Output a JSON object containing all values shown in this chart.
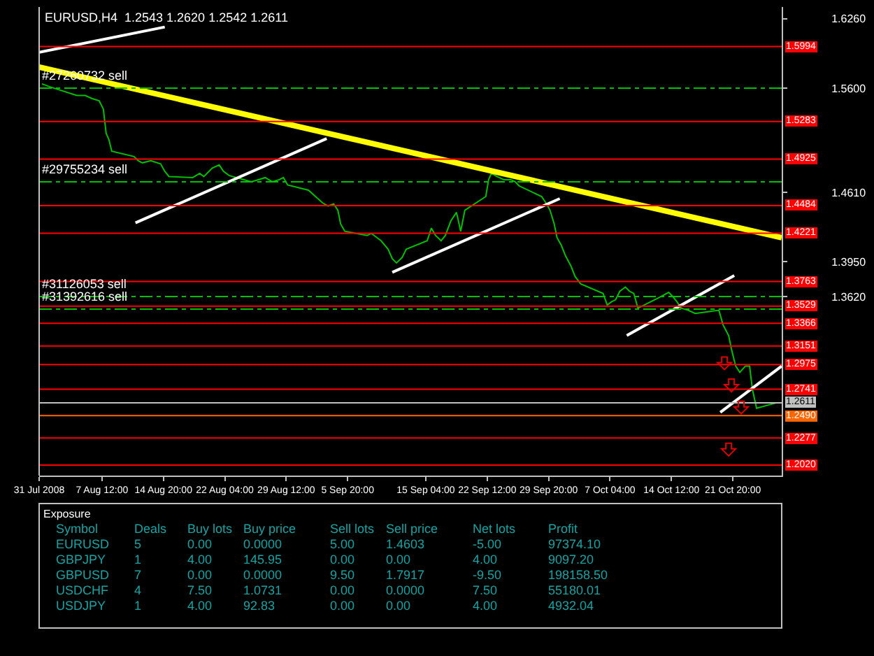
{
  "chart_data": {
    "type": "line",
    "title": "EURUSD,H4  1.2543 1.2620 1.2542 1.2611",
    "xlim": [
      "2008-07-31T00:00",
      "2008-10-27T16:00"
    ],
    "ylim": [
      1.192,
      1.637
    ],
    "xticks": [
      {
        "value": "2008-07-31T00:00",
        "label": "31 Jul 2008"
      },
      {
        "value": "2008-08-07T12:00",
        "label": "7 Aug 12:00"
      },
      {
        "value": "2008-08-14T20:00",
        "label": "14 Aug 20:00"
      },
      {
        "value": "2008-08-22T04:00",
        "label": "22 Aug 04:00"
      },
      {
        "value": "2008-08-29T12:00",
        "label": "29 Aug 12:00"
      },
      {
        "value": "2008-09-05T20:00",
        "label": "5 Sep 20:00"
      },
      {
        "value": "2008-09-15T04:00",
        "label": "15 Sep 04:00"
      },
      {
        "value": "2008-09-22T12:00",
        "label": "22 Sep 12:00"
      },
      {
        "value": "2008-09-29T20:00",
        "label": "29 Sep 20:00"
      },
      {
        "value": "2008-10-07T04:00",
        "label": "7 Oct 04:00"
      },
      {
        "value": "2008-10-14T12:00",
        "label": "14 Oct 12:00"
      },
      {
        "value": "2008-10-21T20:00",
        "label": "21 Oct 20:00"
      }
    ],
    "yticks": [
      {
        "value": 1.626,
        "label": "1.6260"
      },
      {
        "value": 1.56,
        "label": "1.5600"
      },
      {
        "value": 1.461,
        "label": "1.4610"
      },
      {
        "value": 1.395,
        "label": "1.3950"
      },
      {
        "value": 1.362,
        "label": "1.3620"
      }
    ],
    "series": [
      {
        "color": "#00c000",
        "x": [
          "2008-07-31T08:00",
          "2008-08-01T08:00",
          "2008-08-04T12:00",
          "2008-08-05T12:00",
          "2008-08-06T08:00",
          "2008-08-07T04:00",
          "2008-08-07T16:00",
          "2008-08-08T00:00",
          "2008-08-08T08:00",
          "2008-08-08T16:00",
          "2008-08-11T08:00",
          "2008-08-11T20:00",
          "2008-08-12T08:00",
          "2008-08-13T08:00",
          "2008-08-14T12:00",
          "2008-08-15T00:00",
          "2008-08-15T12:00",
          "2008-08-18T08:00",
          "2008-08-19T04:00",
          "2008-08-19T16:00",
          "2008-08-20T16:00",
          "2008-08-21T12:00",
          "2008-08-22T00:00",
          "2008-08-22T16:00",
          "2008-08-25T08:00",
          "2008-08-26T04:00",
          "2008-08-27T00:00",
          "2008-08-27T20:00",
          "2008-08-28T16:00",
          "2008-08-29T04:00",
          "2008-08-29T16:00",
          "2008-09-01T04:00",
          "2008-09-02T00:00",
          "2008-09-02T20:00",
          "2008-09-03T12:00",
          "2008-09-04T04:00",
          "2008-09-04T16:00",
          "2008-09-05T00:00",
          "2008-09-05T12:00",
          "2008-09-08T04:00",
          "2008-09-08T16:00",
          "2008-09-09T08:00",
          "2008-09-09T20:00",
          "2008-09-10T16:00",
          "2008-09-11T04:00",
          "2008-09-11T16:00",
          "2008-09-12T08:00",
          "2008-09-12T20:00",
          "2008-09-15T08:00",
          "2008-09-15T20:00",
          "2008-09-16T08:00",
          "2008-09-17T00:00",
          "2008-09-17T12:00",
          "2008-09-18T04:00",
          "2008-09-18T20:00",
          "2008-09-19T08:00",
          "2008-09-19T20:00",
          "2008-09-22T08:00",
          "2008-09-22T16:00",
          "2008-09-23T00:00",
          "2008-09-23T16:00",
          "2008-09-24T12:00",
          "2008-09-25T08:00",
          "2008-09-25T20:00",
          "2008-09-26T08:00",
          "2008-09-29T00:00",
          "2008-09-29T12:00",
          "2008-09-30T00:00",
          "2008-09-30T12:00",
          "2008-09-30T20:00",
          "2008-10-01T08:00",
          "2008-10-01T20:00",
          "2008-10-02T12:00",
          "2008-10-03T00:00",
          "2008-10-03T16:00",
          "2008-10-06T08:00",
          "2008-10-06T20:00",
          "2008-10-07T08:00",
          "2008-10-07T20:00",
          "2008-10-08T08:00",
          "2008-10-09T00:00",
          "2008-10-09T12:00",
          "2008-10-10T00:00",
          "2008-10-10T12:00",
          "2008-10-13T00:00",
          "2008-10-14T04:00",
          "2008-10-14T16:00",
          "2008-10-15T04:00",
          "2008-10-15T16:00",
          "2008-10-16T12:00",
          "2008-10-17T08:00",
          "2008-10-20T04:00",
          "2008-10-20T16:00",
          "2008-10-21T08:00",
          "2008-10-21T16:00",
          "2008-10-22T04:00",
          "2008-10-22T16:00",
          "2008-10-23T08:00",
          "2008-10-23T20:00",
          "2008-10-24T04:00",
          "2008-10-24T16:00",
          "2008-10-27T00:00"
        ],
        "values": [
          1.564,
          1.561,
          1.553,
          1.553,
          1.55,
          1.548,
          1.54,
          1.517,
          1.511,
          1.5,
          1.495,
          1.491,
          1.489,
          1.491,
          1.488,
          1.481,
          1.476,
          1.475,
          1.479,
          1.476,
          1.484,
          1.487,
          1.481,
          1.477,
          1.471,
          1.473,
          1.475,
          1.471,
          1.473,
          1.475,
          1.468,
          1.463,
          1.457,
          1.451,
          1.448,
          1.45,
          1.444,
          1.431,
          1.424,
          1.42,
          1.422,
          1.418,
          1.415,
          1.407,
          1.398,
          1.394,
          1.399,
          1.407,
          1.415,
          1.427,
          1.42,
          1.415,
          1.42,
          1.434,
          1.442,
          1.424,
          1.444,
          1.457,
          1.473,
          1.479,
          1.476,
          1.473,
          1.473,
          1.471,
          1.467,
          1.457,
          1.451,
          1.444,
          1.431,
          1.418,
          1.411,
          1.401,
          1.391,
          1.381,
          1.374,
          1.365,
          1.354,
          1.357,
          1.359,
          1.367,
          1.371,
          1.367,
          1.365,
          1.351,
          1.361,
          1.366,
          1.362,
          1.357,
          1.351,
          1.349,
          1.346,
          1.349,
          1.335,
          1.325,
          1.312,
          1.296,
          1.29,
          1.296,
          1.296,
          1.274,
          1.256,
          1.261
        ]
      },
      {
        "type": "line",
        "color": "#ffff00",
        "x": [
          "2008-07-31T00:00",
          "2008-10-27T16:00"
        ],
        "values": [
          1.58,
          1.418
        ]
      },
      {
        "type": "line",
        "color": "#ffffff",
        "x": [
          "2008-07-31T00:00",
          "2008-08-15T00:00"
        ],
        "values": [
          1.594,
          1.618
        ]
      },
      {
        "type": "line",
        "color": "#ffffff",
        "x": [
          "2008-08-11T12:00",
          "2008-09-03T08:00"
        ],
        "values": [
          1.432,
          1.512
        ]
      },
      {
        "type": "line",
        "color": "#ffffff",
        "x": [
          "2008-09-11T04:00",
          "2008-10-01T04:00"
        ],
        "values": [
          1.385,
          1.455
        ]
      },
      {
        "type": "line",
        "color": "#ffffff",
        "x": [
          "2008-10-09T04:00",
          "2008-10-22T00:00"
        ],
        "values": [
          1.325,
          1.382
        ]
      },
      {
        "type": "line",
        "color": "#ffffff",
        "x": [
          "2008-10-20T08:00",
          "2008-10-27T16:00"
        ],
        "values": [
          1.252,
          1.296
        ]
      }
    ],
    "ref_lines": [
      {
        "axis": "y",
        "value": 1.5994,
        "label": "1.5994",
        "color": "#ff0000"
      },
      {
        "axis": "y",
        "value": 1.5283,
        "label": "1.5283",
        "color": "#ff0000"
      },
      {
        "axis": "y",
        "value": 1.4925,
        "label": "1.4925",
        "color": "#ff0000"
      },
      {
        "axis": "y",
        "value": 1.4484,
        "label": "1.4484",
        "color": "#ff0000"
      },
      {
        "axis": "y",
        "value": 1.4221,
        "label": "1.4221",
        "color": "#ff0000"
      },
      {
        "axis": "y",
        "value": 1.3763,
        "label": "1.3763",
        "color": "#ff0000"
      },
      {
        "axis": "y",
        "value": 1.3529,
        "label": "1.3529",
        "color": "#ff0000"
      },
      {
        "axis": "y",
        "value": 1.3366,
        "label": "1.3366",
        "color": "#ff0000"
      },
      {
        "axis": "y",
        "value": 1.3151,
        "label": "1.3151",
        "color": "#ff0000"
      },
      {
        "axis": "y",
        "value": 1.2975,
        "label": "1.2975",
        "color": "#ff0000"
      },
      {
        "axis": "y",
        "value": 1.2741,
        "label": "1.2741",
        "color": "#ff0000"
      },
      {
        "axis": "y",
        "value": 1.2611,
        "label": "1.2611",
        "color": "#c0c0c0"
      },
      {
        "axis": "y",
        "value": 1.249,
        "label": "1.2490",
        "color": "#ff6600"
      },
      {
        "axis": "y",
        "value": 1.2277,
        "label": "1.2277",
        "color": "#ff0000"
      },
      {
        "axis": "y",
        "value": 1.202,
        "label": "1.2020",
        "color": "#ff0000"
      },
      {
        "axis": "y",
        "value": 1.56,
        "label": "#27260732 sell",
        "color": "#00c000",
        "line_style": "dashed"
      },
      {
        "axis": "y",
        "value": 1.471,
        "label": "#29755234 sell",
        "color": "#00c000",
        "line_style": "dashed"
      },
      {
        "axis": "y",
        "value": 1.362,
        "label": "#31126053 sell",
        "color": "#00c000",
        "line_style": "dashed"
      },
      {
        "axis": "y",
        "value": 1.35,
        "label": "#31392616 sell",
        "color": "#00c000",
        "line_style": "dashed"
      }
    ],
    "annotations": [
      "Exposure",
      "Symbol",
      "Deals",
      "Buy lots",
      "Buy price",
      "Sell lots",
      "Sell price",
      "Net lots",
      "Profit",
      "EURUSD",
      "5",
      "0.00",
      "0.0000",
      "5.00",
      "1.4603",
      "-5.00",
      "97374.10",
      "GBPJPY",
      "1",
      "4.00",
      "145.95",
      "0.00",
      "0.00",
      "4.00",
      "9097.20",
      "GBPUSD",
      "7",
      "0.00",
      "0.0000",
      "9.50",
      "1.7917",
      "-9.50",
      "198158.50",
      "USDCHF",
      "4",
      "7.50",
      "1.0731",
      "0.00",
      "0.0000",
      "7.50",
      "55180.01",
      "USDJPY",
      "1",
      "4.00",
      "92.83",
      "0.00",
      "0.00",
      "4.00",
      "4932.04"
    ]
  }
}
